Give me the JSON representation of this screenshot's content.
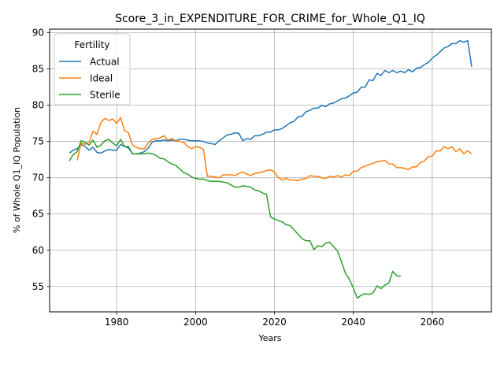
{
  "chart_data": {
    "type": "line",
    "title": "Score_3_in_EXPENDITURE_FOR_CRIME_for_Whole_Q1_IQ",
    "xlabel": "Years",
    "ylabel": "% of Whole Q1_IQ Population",
    "xlim": [
      1963,
      2075
    ],
    "ylim": [
      51.5,
      90.5
    ],
    "xticks": [
      1980,
      2000,
      2020,
      2040,
      2060
    ],
    "yticks": [
      55,
      60,
      65,
      70,
      75,
      80,
      85,
      90
    ],
    "grid": true,
    "legend": {
      "title": "Fertility",
      "placement": "upper-left"
    },
    "series": [
      {
        "name": "Actual",
        "color": "#1f77b4",
        "points": [
          [
            1968,
            73.4
          ],
          [
            1969,
            73.8
          ],
          [
            1970,
            74.0
          ],
          [
            1971,
            74.6
          ],
          [
            1972,
            74.3
          ],
          [
            1973,
            73.8
          ],
          [
            1974,
            74.2
          ],
          [
            1975,
            73.5
          ],
          [
            1976,
            73.4
          ],
          [
            1977,
            73.7
          ],
          [
            1978,
            73.9
          ],
          [
            1979,
            73.8
          ],
          [
            1980,
            73.8
          ],
          [
            1981,
            74.6
          ],
          [
            1982,
            74.3
          ],
          [
            1983,
            74.1
          ],
          [
            1984,
            73.3
          ],
          [
            1985,
            73.3
          ],
          [
            1986,
            73.4
          ],
          [
            1987,
            73.6
          ],
          [
            1988,
            74.1
          ],
          [
            1989,
            74.9
          ],
          [
            1990,
            75.1
          ],
          [
            1991,
            75.1
          ],
          [
            1992,
            75.2
          ],
          [
            1993,
            75.1
          ],
          [
            1994,
            75.2
          ],
          [
            1995,
            75.1
          ],
          [
            1996,
            75.3
          ],
          [
            1997,
            75.3
          ],
          [
            1998,
            75.2
          ],
          [
            1999,
            75.1
          ],
          [
            2000,
            75.1
          ],
          [
            2001,
            75.1
          ],
          [
            2002,
            75.0
          ],
          [
            2003,
            74.8
          ],
          [
            2004,
            74.7
          ],
          [
            2005,
            74.6
          ],
          [
            2006,
            75.1
          ],
          [
            2007,
            75.5
          ],
          [
            2008,
            75.9
          ],
          [
            2009,
            76.0
          ],
          [
            2010,
            76.2
          ],
          [
            2011,
            76.1
          ],
          [
            2012,
            75.1
          ],
          [
            2013,
            75.4
          ],
          [
            2014,
            75.3
          ],
          [
            2015,
            75.8
          ],
          [
            2016,
            75.8
          ],
          [
            2017,
            76.0
          ],
          [
            2018,
            76.3
          ],
          [
            2019,
            76.3
          ],
          [
            2020,
            76.6
          ],
          [
            2021,
            76.6
          ],
          [
            2022,
            76.8
          ],
          [
            2023,
            77.2
          ],
          [
            2024,
            77.6
          ],
          [
            2025,
            77.8
          ],
          [
            2026,
            78.4
          ],
          [
            2027,
            78.5
          ],
          [
            2028,
            79.1
          ],
          [
            2029,
            79.3
          ],
          [
            2030,
            79.6
          ],
          [
            2031,
            79.6
          ],
          [
            2032,
            80.0
          ],
          [
            2033,
            79.8
          ],
          [
            2034,
            80.2
          ],
          [
            2035,
            80.3
          ],
          [
            2036,
            80.6
          ],
          [
            2037,
            80.9
          ],
          [
            2038,
            81.0
          ],
          [
            2039,
            81.3
          ],
          [
            2040,
            81.7
          ],
          [
            2041,
            81.8
          ],
          [
            2042,
            82.5
          ],
          [
            2043,
            82.5
          ],
          [
            2044,
            83.5
          ],
          [
            2045,
            83.4
          ],
          [
            2046,
            84.4
          ],
          [
            2047,
            84.1
          ],
          [
            2048,
            84.8
          ],
          [
            2049,
            84.5
          ],
          [
            2050,
            84.8
          ],
          [
            2051,
            84.5
          ],
          [
            2052,
            84.7
          ],
          [
            2053,
            84.5
          ],
          [
            2054,
            84.9
          ],
          [
            2055,
            84.6
          ],
          [
            2056,
            85.1
          ],
          [
            2057,
            85.2
          ],
          [
            2058,
            85.6
          ],
          [
            2059,
            85.9
          ],
          [
            2060,
            86.5
          ],
          [
            2061,
            86.9
          ],
          [
            2062,
            87.4
          ],
          [
            2063,
            87.9
          ],
          [
            2064,
            88.1
          ],
          [
            2065,
            88.5
          ],
          [
            2066,
            88.5
          ],
          [
            2067,
            88.9
          ],
          [
            2068,
            88.7
          ],
          [
            2069,
            88.9
          ],
          [
            2070,
            85.3
          ]
        ]
      },
      {
        "name": "Ideal",
        "color": "#ff7f0e",
        "points": [
          [
            1970,
            72.4
          ],
          [
            1971,
            74.8
          ],
          [
            1972,
            74.6
          ],
          [
            1973,
            74.9
          ],
          [
            1974,
            76.4
          ],
          [
            1975,
            76.0
          ],
          [
            1976,
            77.6
          ],
          [
            1977,
            78.2
          ],
          [
            1978,
            77.9
          ],
          [
            1979,
            78.1
          ],
          [
            1980,
            77.5
          ],
          [
            1981,
            78.3
          ],
          [
            1982,
            76.5
          ],
          [
            1983,
            76.2
          ],
          [
            1984,
            74.5
          ],
          [
            1985,
            74.2
          ],
          [
            1986,
            74.0
          ],
          [
            1987,
            74.0
          ],
          [
            1988,
            74.8
          ],
          [
            1989,
            75.3
          ],
          [
            1990,
            75.4
          ],
          [
            1991,
            75.5
          ],
          [
            1992,
            75.8
          ],
          [
            1993,
            75.2
          ],
          [
            1994,
            75.4
          ],
          [
            1995,
            75.1
          ],
          [
            1996,
            75.0
          ],
          [
            1997,
            74.9
          ],
          [
            1998,
            74.3
          ],
          [
            1999,
            74.0
          ],
          [
            2000,
            74.3
          ],
          [
            2001,
            74.2
          ],
          [
            2002,
            73.9
          ],
          [
            2003,
            70.2
          ],
          [
            2004,
            70.2
          ],
          [
            2005,
            70.1
          ],
          [
            2006,
            70.0
          ],
          [
            2007,
            70.4
          ],
          [
            2008,
            70.4
          ],
          [
            2009,
            70.4
          ],
          [
            2010,
            70.3
          ],
          [
            2011,
            70.6
          ],
          [
            2012,
            70.8
          ],
          [
            2013,
            70.5
          ],
          [
            2014,
            70.3
          ],
          [
            2015,
            70.6
          ],
          [
            2016,
            70.7
          ],
          [
            2017,
            70.8
          ],
          [
            2018,
            71.0
          ],
          [
            2019,
            71.1
          ],
          [
            2020,
            70.8
          ],
          [
            2021,
            70.0
          ],
          [
            2022,
            69.7
          ],
          [
            2023,
            69.9
          ],
          [
            2024,
            69.7
          ],
          [
            2025,
            69.7
          ],
          [
            2026,
            69.6
          ],
          [
            2027,
            69.8
          ],
          [
            2028,
            69.9
          ],
          [
            2029,
            70.3
          ],
          [
            2030,
            70.2
          ],
          [
            2031,
            70.2
          ],
          [
            2032,
            70.0
          ],
          [
            2033,
            69.9
          ],
          [
            2034,
            70.2
          ],
          [
            2035,
            70.1
          ],
          [
            2036,
            70.3
          ],
          [
            2037,
            70.1
          ],
          [
            2038,
            70.4
          ],
          [
            2039,
            70.3
          ],
          [
            2040,
            70.9
          ],
          [
            2041,
            70.9
          ],
          [
            2042,
            71.4
          ],
          [
            2043,
            71.6
          ],
          [
            2044,
            71.8
          ],
          [
            2045,
            72.0
          ],
          [
            2046,
            72.2
          ],
          [
            2047,
            72.3
          ],
          [
            2048,
            72.4
          ],
          [
            2049,
            71.9
          ],
          [
            2050,
            71.9
          ],
          [
            2051,
            71.4
          ],
          [
            2052,
            71.4
          ],
          [
            2053,
            71.3
          ],
          [
            2054,
            71.1
          ],
          [
            2055,
            71.5
          ],
          [
            2056,
            71.5
          ],
          [
            2057,
            72.1
          ],
          [
            2058,
            72.3
          ],
          [
            2059,
            72.9
          ],
          [
            2060,
            73.0
          ],
          [
            2061,
            73.7
          ],
          [
            2062,
            73.7
          ],
          [
            2063,
            74.3
          ],
          [
            2064,
            74.0
          ],
          [
            2065,
            74.3
          ],
          [
            2066,
            73.6
          ],
          [
            2067,
            74.0
          ],
          [
            2068,
            73.3
          ],
          [
            2069,
            73.7
          ],
          [
            2070,
            73.3
          ]
        ]
      },
      {
        "name": "Sterile",
        "color": "#2ca02c",
        "points": [
          [
            1968,
            72.3
          ],
          [
            1969,
            73.2
          ],
          [
            1970,
            73.6
          ],
          [
            1971,
            75.1
          ],
          [
            1972,
            74.9
          ],
          [
            1973,
            74.5
          ],
          [
            1974,
            75.2
          ],
          [
            1975,
            74.2
          ],
          [
            1976,
            74.5
          ],
          [
            1977,
            75.1
          ],
          [
            1978,
            75.3
          ],
          [
            1979,
            74.8
          ],
          [
            1980,
            74.4
          ],
          [
            1981,
            75.3
          ],
          [
            1982,
            74.3
          ],
          [
            1983,
            74.3
          ],
          [
            1984,
            73.3
          ],
          [
            1985,
            73.3
          ],
          [
            1986,
            73.3
          ],
          [
            1987,
            73.3
          ],
          [
            1988,
            73.4
          ],
          [
            1989,
            73.3
          ],
          [
            1990,
            73.1
          ],
          [
            1991,
            72.7
          ],
          [
            1992,
            72.6
          ],
          [
            1993,
            72.2
          ],
          [
            1994,
            71.9
          ],
          [
            1995,
            71.7
          ],
          [
            1996,
            71.2
          ],
          [
            1997,
            70.7
          ],
          [
            1998,
            70.5
          ],
          [
            1999,
            70.1
          ],
          [
            2000,
            69.9
          ],
          [
            2001,
            69.8
          ],
          [
            2002,
            69.8
          ],
          [
            2003,
            69.6
          ],
          [
            2004,
            69.5
          ],
          [
            2005,
            69.5
          ],
          [
            2006,
            69.5
          ],
          [
            2007,
            69.4
          ],
          [
            2008,
            69.3
          ],
          [
            2009,
            69.0
          ],
          [
            2010,
            68.7
          ],
          [
            2011,
            68.7
          ],
          [
            2012,
            68.9
          ],
          [
            2013,
            68.8
          ],
          [
            2014,
            68.7
          ],
          [
            2015,
            68.3
          ],
          [
            2016,
            68.2
          ],
          [
            2017,
            67.9
          ],
          [
            2018,
            67.7
          ],
          [
            2019,
            64.6
          ],
          [
            2020,
            64.3
          ],
          [
            2021,
            64.1
          ],
          [
            2022,
            63.9
          ],
          [
            2023,
            63.5
          ],
          [
            2024,
            63.4
          ],
          [
            2025,
            62.8
          ],
          [
            2026,
            62.2
          ],
          [
            2027,
            61.6
          ],
          [
            2028,
            61.3
          ],
          [
            2029,
            61.3
          ],
          [
            2030,
            60.1
          ],
          [
            2031,
            60.6
          ],
          [
            2032,
            60.5
          ],
          [
            2033,
            61.0
          ],
          [
            2034,
            61.1
          ],
          [
            2035,
            60.5
          ],
          [
            2036,
            59.9
          ],
          [
            2037,
            58.4
          ],
          [
            2038,
            56.8
          ],
          [
            2039,
            56.0
          ],
          [
            2040,
            54.8
          ],
          [
            2041,
            53.4
          ],
          [
            2042,
            53.8
          ],
          [
            2043,
            54.0
          ],
          [
            2044,
            53.9
          ],
          [
            2045,
            54.1
          ],
          [
            2046,
            55.1
          ],
          [
            2047,
            54.7
          ],
          [
            2048,
            55.2
          ],
          [
            2049,
            55.5
          ],
          [
            2050,
            57.1
          ],
          [
            2051,
            56.5
          ],
          [
            2052,
            56.4
          ]
        ]
      }
    ]
  }
}
